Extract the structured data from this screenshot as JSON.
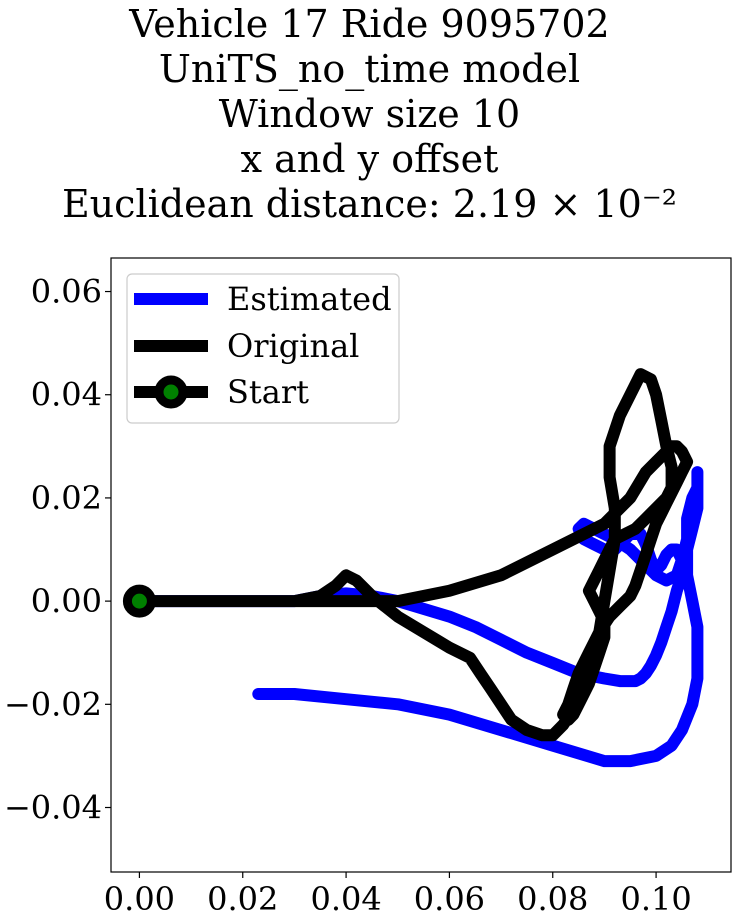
{
  "chart_data": {
    "type": "line",
    "title_lines": [
      "Vehicle 17 Ride 9095702",
      "UniTS_no_time model",
      "Window size 10",
      "x and y offset",
      "Euclidean distance: 2.19 × 10⁻²"
    ],
    "xlabel": "",
    "ylabel": "",
    "xlim": [
      -0.0055,
      0.1145
    ],
    "ylim": [
      -0.0525,
      0.0665
    ],
    "xticks": [
      0.0,
      0.02,
      0.04,
      0.06,
      0.08,
      0.1
    ],
    "xtick_labels": [
      "0.00",
      "0.02",
      "0.04",
      "0.06",
      "0.08",
      "0.10"
    ],
    "yticks": [
      -0.04,
      -0.02,
      0.0,
      0.02,
      0.04,
      0.06
    ],
    "ytick_labels": [
      "−0.04",
      "−0.02",
      "0.00",
      "0.02",
      "0.04",
      "0.06"
    ],
    "grid": false,
    "legend_position": "top-left",
    "series": [
      {
        "name": "Estimated",
        "color": "#0000ff",
        "x": [
          0.0,
          0.01,
          0.02,
          0.03,
          0.035,
          0.04,
          0.045,
          0.05,
          0.055,
          0.06,
          0.065,
          0.07,
          0.075,
          0.08,
          0.085,
          0.09,
          0.093,
          0.096,
          0.097,
          0.098,
          0.099,
          0.1,
          0.101,
          0.102,
          0.103,
          0.104,
          0.105,
          0.105,
          0.104,
          0.103,
          0.102,
          0.101,
          0.1,
          0.099,
          0.098,
          0.097,
          0.096,
          0.095,
          0.094,
          0.093,
          0.092,
          0.09,
          0.088,
          0.086,
          0.085,
          0.086,
          0.088,
          0.092,
          0.095,
          0.098,
          0.1,
          0.102,
          0.104,
          0.105,
          0.106,
          0.106,
          0.107,
          0.108,
          0.108,
          0.108,
          0.108,
          0.108,
          0.107,
          0.106,
          0.106,
          0.107,
          0.108,
          0.108,
          0.108,
          0.107,
          0.105,
          0.103,
          0.1,
          0.095,
          0.09,
          0.08,
          0.07,
          0.06,
          0.05,
          0.04,
          0.03,
          0.023
        ],
        "y": [
          0.0,
          0.0,
          0.0,
          0.0,
          0.001,
          0.0015,
          0.001,
          0.0,
          -0.0015,
          -0.003,
          -0.005,
          -0.0075,
          -0.01,
          -0.012,
          -0.014,
          -0.015,
          -0.0155,
          -0.0155,
          -0.015,
          -0.014,
          -0.0125,
          -0.0105,
          -0.008,
          -0.005,
          -0.002,
          0.002,
          0.005,
          0.008,
          0.01,
          0.01,
          0.009,
          0.007,
          0.006,
          0.008,
          0.011,
          0.013,
          0.013,
          0.013,
          0.012,
          0.011,
          0.01,
          0.01,
          0.011,
          0.012,
          0.014,
          0.015,
          0.014,
          0.012,
          0.01,
          0.007,
          0.005,
          0.004,
          0.005,
          0.008,
          0.012,
          0.016,
          0.02,
          0.022,
          0.025,
          0.024,
          0.022,
          0.018,
          0.014,
          0.01,
          0.005,
          0.0,
          -0.005,
          -0.01,
          -0.015,
          -0.02,
          -0.025,
          -0.028,
          -0.03,
          -0.031,
          -0.031,
          -0.028,
          -0.025,
          -0.022,
          -0.02,
          -0.019,
          -0.018,
          -0.018
        ]
      },
      {
        "name": "Original",
        "color": "#000000",
        "x": [
          0.0,
          0.01,
          0.02,
          0.03,
          0.035,
          0.038,
          0.04,
          0.042,
          0.045,
          0.05,
          0.055,
          0.06,
          0.064,
          0.066,
          0.068,
          0.07,
          0.072,
          0.075,
          0.078,
          0.08,
          0.082,
          0.084,
          0.086,
          0.088,
          0.089,
          0.09,
          0.091,
          0.092,
          0.092,
          0.091,
          0.091,
          0.093,
          0.095,
          0.097,
          0.099,
          0.1,
          0.101,
          0.102,
          0.103,
          0.103,
          0.102,
          0.1,
          0.098,
          0.096,
          0.094,
          0.092,
          0.091,
          0.09,
          0.089,
          0.088,
          0.087,
          0.088,
          0.089,
          0.09,
          0.09,
          0.089,
          0.088,
          0.087,
          0.086,
          0.085,
          0.084,
          0.083,
          0.082,
          0.083,
          0.084,
          0.085,
          0.087,
          0.089,
          0.091,
          0.093,
          0.094,
          0.095,
          0.096,
          0.097,
          0.098,
          0.099,
          0.1,
          0.101,
          0.102,
          0.103,
          0.104,
          0.105,
          0.106,
          0.105,
          0.104,
          0.103,
          0.102,
          0.1,
          0.098,
          0.095,
          0.09,
          0.08,
          0.07,
          0.06,
          0.05,
          0.04,
          0.03,
          0.02,
          0.01,
          0.0
        ],
        "y": [
          0.0,
          0.0,
          0.0,
          0.0,
          0.001,
          0.003,
          0.005,
          0.004,
          0.001,
          -0.003,
          -0.006,
          -0.009,
          -0.011,
          -0.014,
          -0.017,
          -0.02,
          -0.023,
          -0.025,
          -0.026,
          -0.026,
          -0.024,
          -0.021,
          -0.018,
          -0.012,
          -0.006,
          0.0,
          0.006,
          0.012,
          0.018,
          0.024,
          0.03,
          0.036,
          0.04,
          0.044,
          0.043,
          0.04,
          0.035,
          0.03,
          0.026,
          0.022,
          0.02,
          0.018,
          0.016,
          0.014,
          0.013,
          0.012,
          0.01,
          0.008,
          0.006,
          0.004,
          0.002,
          0.0,
          -0.002,
          -0.004,
          -0.007,
          -0.01,
          -0.013,
          -0.016,
          -0.018,
          -0.02,
          -0.022,
          -0.023,
          -0.022,
          -0.02,
          -0.017,
          -0.014,
          -0.01,
          -0.006,
          -0.003,
          -0.001,
          0.0,
          0.001,
          0.003,
          0.006,
          0.009,
          0.012,
          0.015,
          0.017,
          0.019,
          0.021,
          0.023,
          0.025,
          0.027,
          0.029,
          0.03,
          0.03,
          0.029,
          0.027,
          0.025,
          0.02,
          0.015,
          0.01,
          0.005,
          0.002,
          0.0,
          0.0,
          0.0,
          0.0,
          0.0,
          0.0
        ]
      },
      {
        "name": "Start",
        "color": "#000000",
        "marker_color": "#008000",
        "x": [
          0.0
        ],
        "y": [
          0.0
        ]
      }
    ]
  }
}
